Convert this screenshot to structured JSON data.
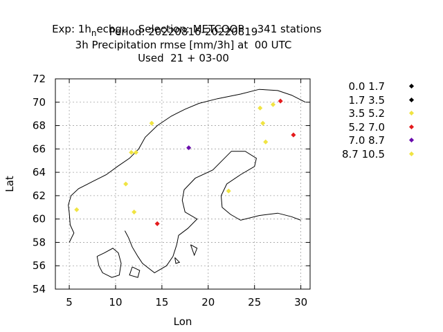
{
  "title_lines": [
    "Exp: 1h",
    "echgu   Selection: METCOOP    341 stations",
    "Period: 20220816-20220819",
    "3h Precipitation rmse [mm/3h] at  00 UTC",
    "Used  21 + 03-00"
  ],
  "title_subscript": "n",
  "chart_data": {
    "type": "scatter",
    "xlabel": "Lon",
    "ylabel": "Lat",
    "xlim": [
      3.5,
      31
    ],
    "ylim": [
      54,
      72
    ],
    "xticks": [
      5,
      10,
      15,
      20,
      25,
      30
    ],
    "yticks": [
      54,
      56,
      58,
      60,
      62,
      64,
      66,
      68,
      70,
      72
    ],
    "grid": true,
    "legend_placement": "right",
    "legend": [
      {
        "label": "0.0 1.7",
        "color": "#000000"
      },
      {
        "label": "1.7 3.5",
        "color": "#000000"
      },
      {
        "label": "3.5 5.2",
        "color": "#f0e442"
      },
      {
        "label": "5.2 7.0",
        "color": "#e41a1c"
      },
      {
        "label": "7.0 8.7",
        "color": "#6a0dad"
      },
      {
        "label": "8.7 10.5",
        "color": "#f0e442"
      }
    ],
    "series": [
      {
        "name": "3.5 5.2",
        "color": "#f0e442",
        "points": [
          [
            12.2,
            65.7
          ],
          [
            13.9,
            68.2
          ],
          [
            11.1,
            63.0
          ],
          [
            5.8,
            60.8
          ],
          [
            12.0,
            60.6
          ],
          [
            22.2,
            62.4
          ],
          [
            25.6,
            69.5
          ],
          [
            25.9,
            68.2
          ],
          [
            26.2,
            66.6
          ],
          [
            27.0,
            69.8
          ]
        ]
      },
      {
        "name": "5.2 7.0",
        "color": "#e41a1c",
        "points": [
          [
            14.5,
            59.6
          ],
          [
            27.8,
            70.1
          ],
          [
            29.2,
            67.2
          ]
        ]
      },
      {
        "name": "7.0 8.7",
        "color": "#6a0dad",
        "points": [
          [
            17.9,
            66.1
          ]
        ]
      },
      {
        "name": "8.7 10.5",
        "color": "#f0e442",
        "points": [
          [
            11.7,
            65.7
          ]
        ]
      },
      {
        "name": "0.0 1.7",
        "color": "#000000",
        "points": []
      },
      {
        "name": "1.7 3.5",
        "color": "#000000",
        "points": []
      }
    ]
  },
  "coast_outline": [
    [
      [
        5.0,
        58.0
      ],
      [
        5.5,
        58.8
      ],
      [
        5.1,
        59.5
      ],
      [
        5.0,
        60.5
      ],
      [
        4.9,
        61.2
      ],
      [
        5.2,
        62.0
      ],
      [
        6.0,
        62.6
      ],
      [
        7.5,
        63.2
      ],
      [
        9.0,
        63.8
      ],
      [
        10.2,
        64.5
      ],
      [
        11.5,
        65.2
      ],
      [
        12.5,
        66.0
      ],
      [
        13.2,
        67.0
      ],
      [
        14.5,
        68.0
      ],
      [
        16.0,
        68.8
      ],
      [
        17.5,
        69.4
      ],
      [
        19.0,
        69.9
      ],
      [
        21.0,
        70.3
      ],
      [
        23.5,
        70.7
      ],
      [
        25.5,
        71.1
      ],
      [
        27.5,
        71.0
      ],
      [
        29.0,
        70.6
      ],
      [
        30.5,
        70.0
      ]
    ],
    [
      [
        11.0,
        59.0
      ],
      [
        11.4,
        58.4
      ],
      [
        11.8,
        57.6
      ],
      [
        12.4,
        56.8
      ],
      [
        12.9,
        56.2
      ],
      [
        14.2,
        55.4
      ],
      [
        15.5,
        56.0
      ],
      [
        16.2,
        56.8
      ],
      [
        16.6,
        57.8
      ],
      [
        16.8,
        58.6
      ],
      [
        17.8,
        59.2
      ],
      [
        18.8,
        60.0
      ],
      [
        17.5,
        60.6
      ],
      [
        17.2,
        61.6
      ],
      [
        17.4,
        62.5
      ],
      [
        18.6,
        63.5
      ],
      [
        20.5,
        64.2
      ],
      [
        21.5,
        65.0
      ],
      [
        22.5,
        65.8
      ],
      [
        24.0,
        65.8
      ],
      [
        25.2,
        65.2
      ],
      [
        25.0,
        64.5
      ],
      [
        23.5,
        63.8
      ],
      [
        22.0,
        63.0
      ],
      [
        21.4,
        62.0
      ],
      [
        21.5,
        61.0
      ],
      [
        22.4,
        60.4
      ],
      [
        23.5,
        59.9
      ],
      [
        25.5,
        60.3
      ],
      [
        27.5,
        60.5
      ],
      [
        29.0,
        60.2
      ],
      [
        30.0,
        59.9
      ]
    ],
    [
      [
        8.0,
        56.8
      ],
      [
        8.2,
        56.0
      ],
      [
        8.6,
        55.4
      ],
      [
        9.6,
        55.0
      ],
      [
        10.4,
        55.2
      ],
      [
        10.6,
        56.2
      ],
      [
        10.3,
        57.1
      ],
      [
        9.7,
        57.5
      ],
      [
        8.8,
        57.1
      ],
      [
        8.0,
        56.8
      ]
    ],
    [
      [
        11.8,
        55.9
      ],
      [
        12.6,
        55.6
      ],
      [
        12.4,
        55.0
      ],
      [
        11.5,
        55.2
      ],
      [
        11.8,
        55.9
      ]
    ],
    [
      [
        18.1,
        57.8
      ],
      [
        18.8,
        57.5
      ],
      [
        18.5,
        56.9
      ],
      [
        18.1,
        57.8
      ]
    ],
    [
      [
        16.4,
        56.7
      ],
      [
        16.9,
        56.3
      ],
      [
        16.5,
        56.2
      ],
      [
        16.4,
        56.7
      ]
    ]
  ]
}
